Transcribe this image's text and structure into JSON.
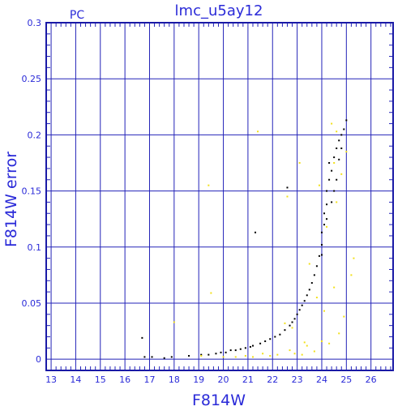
{
  "chart_data": {
    "type": "scatter",
    "title": "lmc_u5ay12",
    "subtitle": "PC",
    "xlabel": "F814W",
    "ylabel": "F814W error",
    "xlim": [
      12.8,
      26.9
    ],
    "ylim": [
      -0.01,
      0.3
    ],
    "xticks": [
      "13",
      "14",
      "15",
      "16",
      "17",
      "18",
      "19",
      "20",
      "21",
      "22",
      "23",
      "24",
      "25",
      "26"
    ],
    "yticks": [
      "0",
      "0.05",
      "0.1",
      "0.15",
      "0.2",
      "0.25",
      "0.3"
    ],
    "grid": true,
    "colors": {
      "frame": "#1a1aa6",
      "grid": "#2323b8",
      "text": "#2a2ad8",
      "series_black": "#000000",
      "series_yellow": "#f2e01a"
    },
    "series": [
      {
        "color": "black",
        "points": [
          [
            16.7,
            0.019
          ],
          [
            16.8,
            0.002
          ],
          [
            17.1,
            0.002
          ],
          [
            17.6,
            0.001
          ],
          [
            17.9,
            0.002
          ],
          [
            18.6,
            0.003
          ],
          [
            19.1,
            0.004
          ],
          [
            19.4,
            0.004
          ],
          [
            19.7,
            0.005
          ],
          [
            19.9,
            0.006
          ],
          [
            20.1,
            0.006
          ],
          [
            20.3,
            0.008
          ],
          [
            20.5,
            0.008
          ],
          [
            20.7,
            0.009
          ],
          [
            20.9,
            0.01
          ],
          [
            21.1,
            0.011
          ],
          [
            21.2,
            0.012
          ],
          [
            21.3,
            0.113
          ],
          [
            21.5,
            0.014
          ],
          [
            21.7,
            0.016
          ],
          [
            21.9,
            0.018
          ],
          [
            22.1,
            0.02
          ],
          [
            22.3,
            0.022
          ],
          [
            22.5,
            0.026
          ],
          [
            22.6,
            0.153
          ],
          [
            22.7,
            0.03
          ],
          [
            22.8,
            0.033
          ],
          [
            22.9,
            0.036
          ],
          [
            23.0,
            0.04
          ],
          [
            23.1,
            0.044
          ],
          [
            23.2,
            0.048
          ],
          [
            23.3,
            0.052
          ],
          [
            23.4,
            0.057
          ],
          [
            23.5,
            0.062
          ],
          [
            23.6,
            0.068
          ],
          [
            23.7,
            0.075
          ],
          [
            23.8,
            0.083
          ],
          [
            23.9,
            0.092
          ],
          [
            24.0,
            0.102
          ],
          [
            24.0,
            0.113
          ],
          [
            24.1,
            0.12
          ],
          [
            24.1,
            0.13
          ],
          [
            24.2,
            0.138
          ],
          [
            24.2,
            0.15
          ],
          [
            24.3,
            0.16
          ],
          [
            24.3,
            0.175
          ],
          [
            24.4,
            0.168
          ],
          [
            24.5,
            0.18
          ],
          [
            24.6,
            0.188
          ],
          [
            24.7,
            0.195
          ],
          [
            24.8,
            0.2
          ],
          [
            24.9,
            0.205
          ],
          [
            25.0,
            0.213
          ],
          [
            24.4,
            0.14
          ],
          [
            24.6,
            0.16
          ],
          [
            24.5,
            0.15
          ],
          [
            24.2,
            0.125
          ],
          [
            24.0,
            0.093
          ],
          [
            24.7,
            0.178
          ],
          [
            24.8,
            0.188
          ]
        ]
      },
      {
        "color": "yellow",
        "points": [
          [
            18.0,
            0.033
          ],
          [
            19.1,
            0.003
          ],
          [
            19.4,
            0.155
          ],
          [
            19.5,
            0.059
          ],
          [
            20.0,
            0.002
          ],
          [
            20.5,
            0.002
          ],
          [
            20.9,
            0.003
          ],
          [
            21.2,
            0.002
          ],
          [
            21.4,
            0.203
          ],
          [
            21.6,
            0.005
          ],
          [
            21.9,
            0.003
          ],
          [
            22.2,
            0.004
          ],
          [
            22.5,
            0.032
          ],
          [
            22.6,
            0.145
          ],
          [
            22.7,
            0.008
          ],
          [
            22.9,
            0.005
          ],
          [
            23.1,
            0.175
          ],
          [
            23.2,
            0.004
          ],
          [
            23.4,
            0.012
          ],
          [
            23.5,
            0.085
          ],
          [
            23.7,
            0.007
          ],
          [
            23.9,
            0.155
          ],
          [
            24.0,
            0.016
          ],
          [
            24.1,
            0.043
          ],
          [
            24.3,
            0.014
          ],
          [
            24.4,
            0.21
          ],
          [
            24.5,
            0.175
          ],
          [
            24.6,
            0.14
          ],
          [
            24.7,
            0.023
          ],
          [
            24.8,
            0.165
          ],
          [
            25.0,
            0.185
          ],
          [
            25.2,
            0.075
          ],
          [
            25.3,
            0.09
          ],
          [
            24.9,
            0.038
          ],
          [
            24.2,
            0.118
          ],
          [
            23.8,
            0.055
          ],
          [
            23.3,
            0.015
          ],
          [
            22.8,
            0.028
          ],
          [
            24.5,
            0.064
          ],
          [
            24.6,
            0.203
          ]
        ]
      }
    ]
  }
}
